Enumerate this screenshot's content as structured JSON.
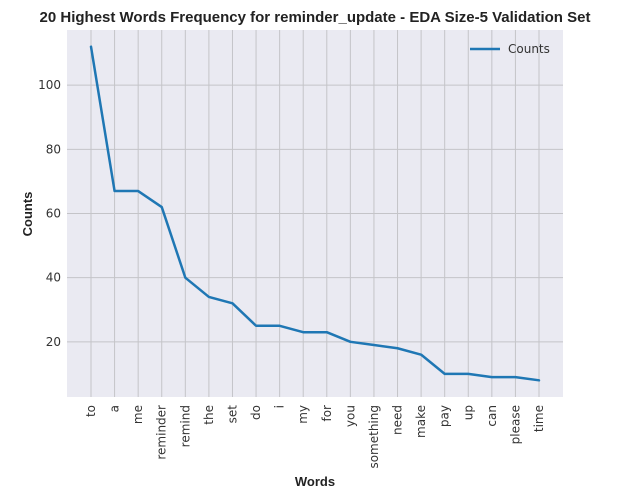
{
  "colors": {
    "plot_bg": "#eaeaf2",
    "grid": "#c4c4c8",
    "line": "#1f77b4"
  },
  "chart_data": {
    "type": "line",
    "title": "20 Highest Words Frequency for reminder_update - EDA Size-5 Validation Set",
    "xlabel": "Words",
    "ylabel": "Counts",
    "categories": [
      "to",
      "a",
      "me",
      "reminder",
      "remind",
      "the",
      "set",
      "do",
      "i",
      "my",
      "for",
      "you",
      "something",
      "need",
      "make",
      "pay",
      "up",
      "can",
      "please",
      "time"
    ],
    "series": [
      {
        "name": "Counts",
        "values": [
          112,
          67,
          67,
          62,
          40,
          34,
          32,
          25,
          25,
          23,
          23,
          20,
          19,
          18,
          16,
          10,
          10,
          9,
          9,
          8
        ]
      }
    ],
    "yticks": [
      20,
      40,
      60,
      80,
      100
    ],
    "ylim": [
      2.8,
      117.2
    ],
    "grid": true,
    "legend": "top-right"
  }
}
